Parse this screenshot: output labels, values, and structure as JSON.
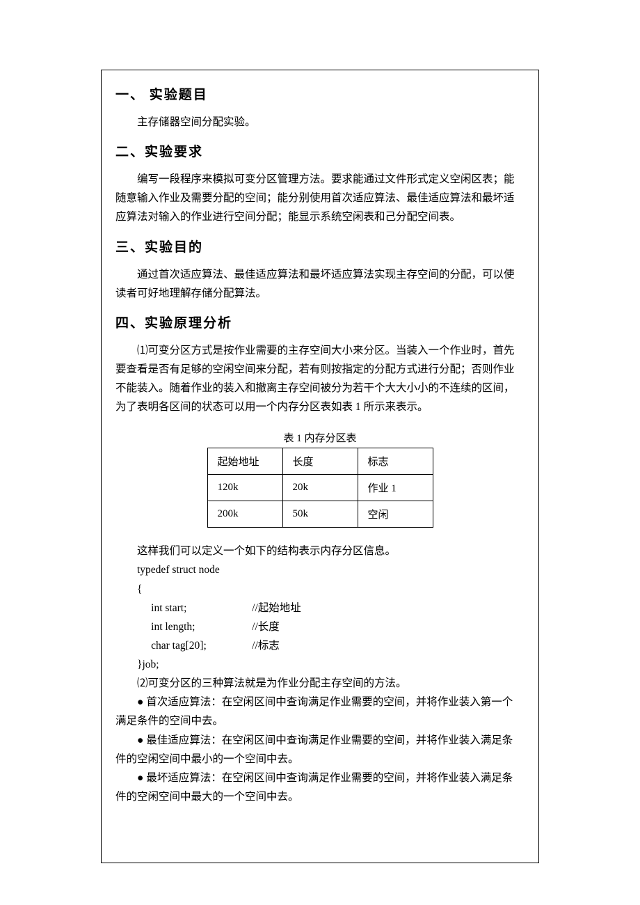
{
  "section1": {
    "heading": "一、 实验题目",
    "body": "主存储器空间分配实验。"
  },
  "section2": {
    "heading": "二、实验要求",
    "body": "编写一段程序来模拟可变分区管理方法。要求能通过文件形式定义空闲区表；能随意输入作业及需要分配的空间；能分别使用首次适应算法、最佳适应算法和最坏适应算法对输入的作业进行空间分配；能显示系统空闲表和己分配空间表。"
  },
  "section3": {
    "heading": "三、实验目的",
    "body": "通过首次适应算法、最佳适应算法和最坏适应算法实现主存空间的分配，可以使读者可好地理解存储分配算法。"
  },
  "section4": {
    "heading": "四、实验原理分析",
    "para1": "⑴可变分区方式是按作业需要的主存空间大小来分区。当装入一个作业时，首先要查看是否有足够的空闲空间来分配，若有则按指定的分配方式进行分配；否则作业不能装入。随着作业的装入和撤离主存空间被分为若干个大大小小的不连续的区间，为了表明各区间的状态可以用一个内存分区表如表 1 所示来表示。",
    "table": {
      "caption": "表 1   内存分区表",
      "headers": [
        "起始地址",
        "长度",
        "标志"
      ],
      "rows": [
        [
          "120k",
          "20k",
          "作业 1"
        ],
        [
          "200k",
          "50k",
          "空闲"
        ]
      ]
    },
    "para2": "这样我们可以定义一个如下的结构表示内存分区信息。",
    "code": {
      "line1": "typedef struct node",
      "line2": "{",
      "var1": "int start;",
      "comment1": "//起始地址",
      "var2": "int length;",
      "comment2": "//长度",
      "var3": "char tag[20];",
      "comment3": "//标志",
      "line6": "}job;"
    },
    "para3": "⑵可变分区的三种算法就是为作业分配主存空间的方法。",
    "bullet1": "● 首次适应算法：在空闲区间中查询满足作业需要的空间，并将作业装入第一个",
    "bullet1cont": "满足条件的空间中去。",
    "bullet2": "● 最佳适应算法：在空闲区间中查询满足作业需要的空间，并将作业装入满足条",
    "bullet2cont": "件的空闲空间中最小的一个空间中去。",
    "bullet3": "● 最坏适应算法：在空闲区间中查询满足作业需要的空间，并将作业装入满足条",
    "bullet3cont": "件的空闲空间中最大的一个空间中去。"
  }
}
